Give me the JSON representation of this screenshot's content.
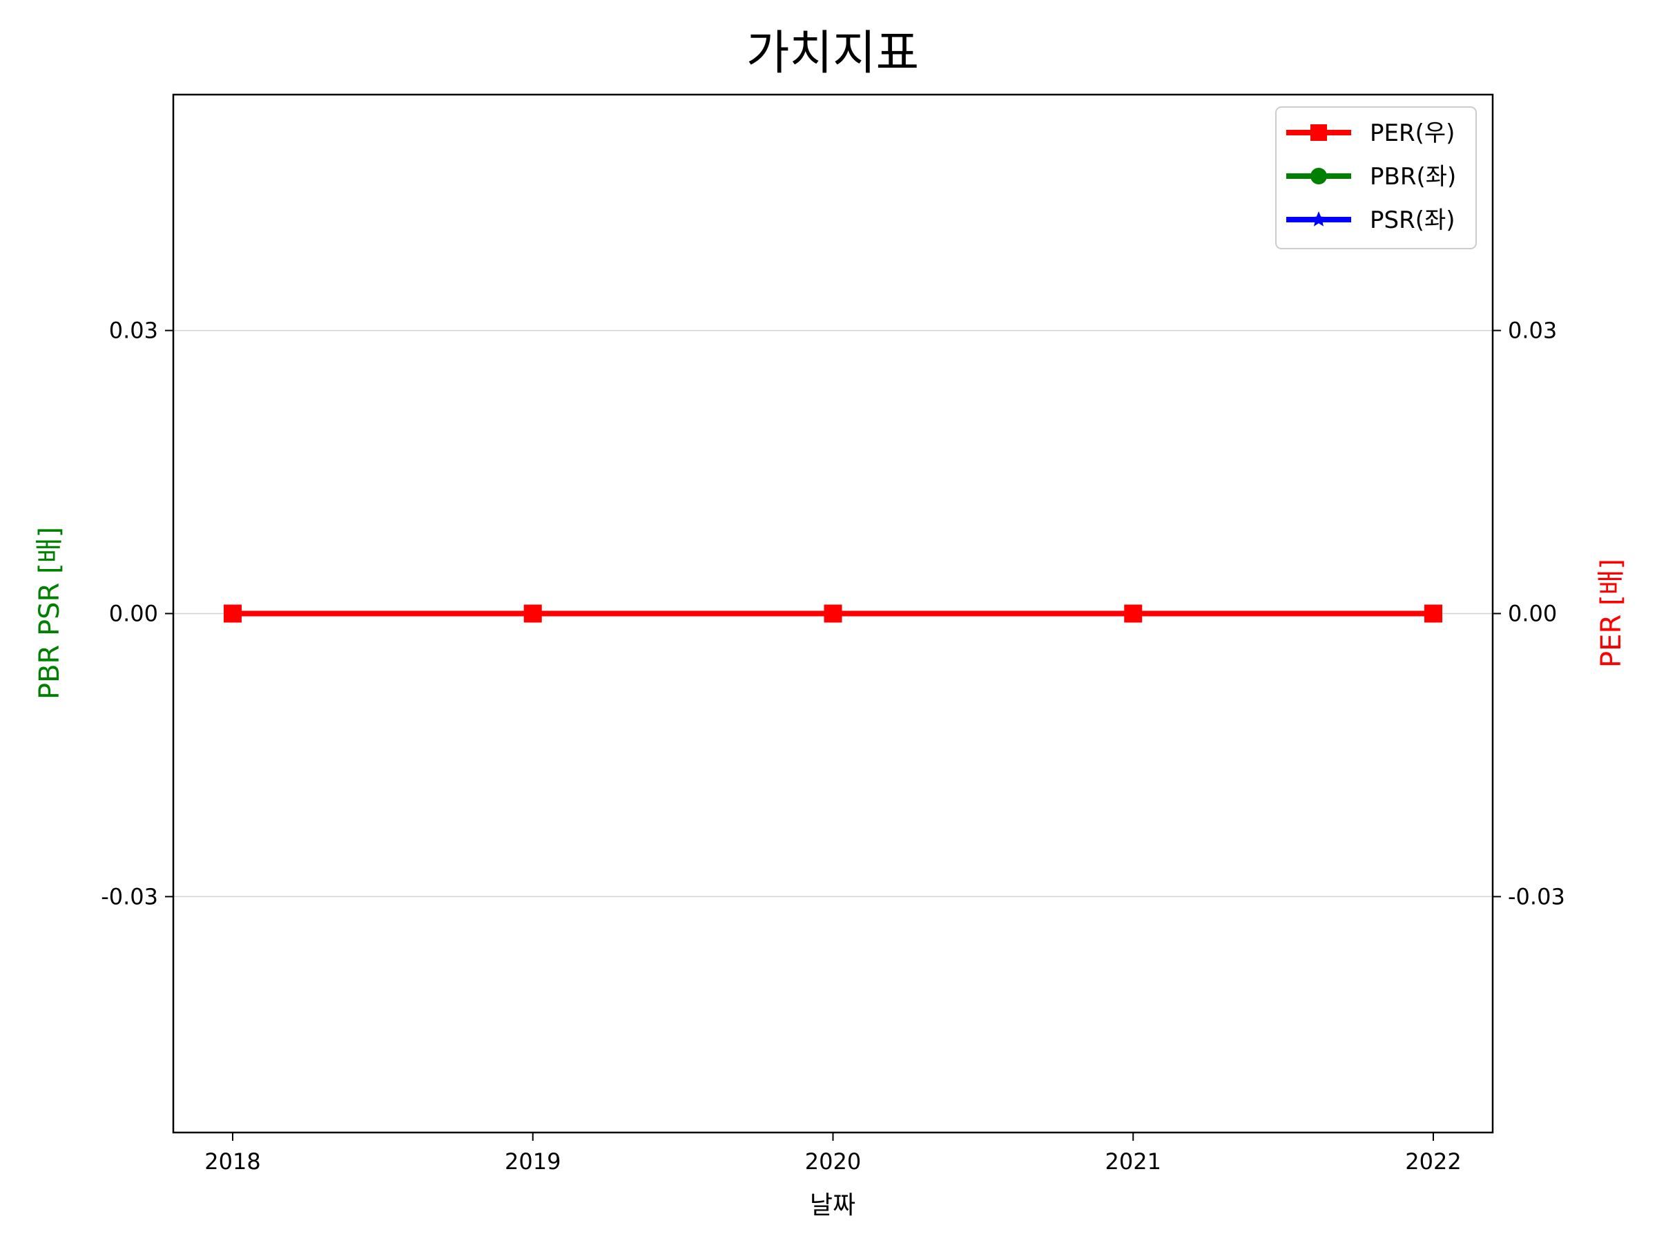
{
  "chart_data": {
    "type": "line",
    "title": "가치지표",
    "xlabel": "날짜",
    "ylabel_left": "PBR PSR [배]",
    "ylabel_right": "PER [배]",
    "x": [
      2018,
      2019,
      2020,
      2021,
      2022
    ],
    "x_tick_labels": [
      "2018",
      "2019",
      "2020",
      "2021",
      "2022"
    ],
    "ylim_left": [
      -0.055,
      0.055
    ],
    "ylim_right": [
      -0.055,
      0.055
    ],
    "y_ticks_left": [
      0.03,
      0.0,
      -0.03
    ],
    "y_tick_labels_left": [
      "0.03",
      "0.00",
      "-0.03"
    ],
    "y_ticks_right": [
      0.03,
      0.0,
      -0.03
    ],
    "y_tick_labels_right": [
      "0.03",
      "0.00",
      "-0.03"
    ],
    "grid": "horizontal",
    "legend_position": "top-right",
    "series": [
      {
        "name": "PER(우)",
        "axis": "right",
        "color": "#ff0000",
        "marker": "square",
        "values": [
          0,
          0,
          0,
          0,
          0
        ]
      },
      {
        "name": "PBR(좌)",
        "axis": "left",
        "color": "#008000",
        "marker": "circle",
        "values": [
          0,
          0,
          0,
          0,
          0
        ]
      },
      {
        "name": "PSR(좌)",
        "axis": "left",
        "color": "#0000ff",
        "marker": "star",
        "values": [
          0,
          0,
          0,
          0,
          0
        ]
      }
    ],
    "colors": {
      "left_axis_label": "#008000",
      "right_axis_label": "#ff0000",
      "grid": "#d3d3d3",
      "frame": "#000000"
    }
  }
}
